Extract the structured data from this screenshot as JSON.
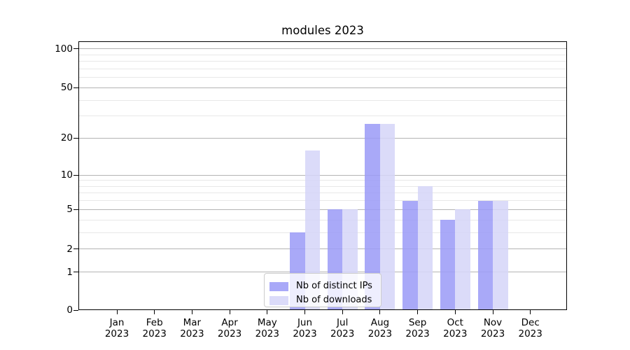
{
  "chart_data": {
    "type": "bar",
    "title": "modules 2023",
    "categories": [
      "Jan",
      "Feb",
      "Mar",
      "Apr",
      "May",
      "Jun",
      "Jul",
      "Aug",
      "Sep",
      "Oct",
      "Nov",
      "Dec"
    ],
    "category_year_label": "2023",
    "series": [
      {
        "name": "Nb of distinct IPs",
        "color": "#a9a9f8",
        "values": [
          0,
          0,
          0,
          0,
          0,
          3,
          5,
          26,
          6,
          4,
          6,
          0
        ]
      },
      {
        "name": "Nb of downloads",
        "color": "#dbdbf9",
        "values": [
          0,
          0,
          0,
          0,
          0,
          16,
          5,
          26,
          8,
          5,
          6,
          0
        ]
      }
    ],
    "xlabel": "",
    "ylabel": "",
    "yscale": "log1p",
    "yticks_major": [
      0,
      1,
      2,
      5,
      10,
      20,
      50,
      100
    ],
    "yticks_minor": [
      3,
      4,
      6,
      7,
      8,
      9,
      30,
      40,
      60,
      70,
      80,
      90
    ],
    "ylim": [
      0,
      113
    ],
    "grid": true,
    "legend_position": "inside-bottom-center",
    "colors": {
      "grid_major": "#b4b4b4",
      "grid_minor": "#e8e8e8",
      "axis": "#000000",
      "legend_border": "#cccccc"
    }
  }
}
